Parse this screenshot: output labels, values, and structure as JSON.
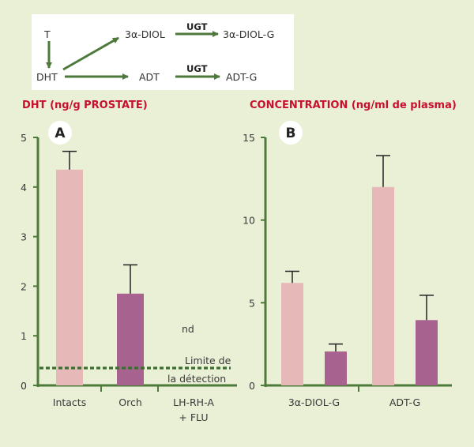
{
  "colors": {
    "background": "#e9f0d6",
    "axis": "#4d7a3a",
    "title": "#c8102e",
    "bar_light": "#e6b8b8",
    "bar_dark": "#a8628f",
    "arrow": "#4d7a3a"
  },
  "scheme": {
    "T": "T",
    "DHT": "DHT",
    "diol": "3α-DIOL",
    "diol_g": "3α-DIOL-G",
    "adt": "ADT",
    "adt_g": "ADT-G",
    "ugt_top": "UGT",
    "ugt_bottom": "UGT"
  },
  "chart_data": [
    {
      "type": "bar",
      "badge": "A",
      "title": "DHT (ng/g PROSTATE)",
      "categories": [
        "Intacts",
        "Orch",
        "LH-RH-A"
      ],
      "category_sub": [
        "",
        "",
        "+ FLU"
      ],
      "values": [
        4.35,
        1.85,
        null
      ],
      "errors": [
        0.37,
        0.58,
        null
      ],
      "bar_colors": [
        "#e6b8b8",
        "#a8628f",
        null
      ],
      "yticks": [
        "0",
        "1",
        "2",
        "3",
        "4",
        "5"
      ],
      "ylim": [
        0,
        5
      ],
      "not_detected": "nd",
      "detection_limit": 0.35,
      "detection_label_1": "Limite de",
      "detection_label_2": "la détection"
    },
    {
      "type": "bar",
      "badge": "B",
      "title": "CONCENTRATION (ng/ml de plasma)",
      "categories": [
        "3α-DIOL-G",
        "ADT-G"
      ],
      "series": [
        {
          "values": [
            6.2,
            12.0
          ],
          "errors": [
            0.7,
            1.9
          ],
          "color": "#e6b8b8"
        },
        {
          "values": [
            2.05,
            3.95
          ],
          "errors": [
            0.45,
            1.5
          ],
          "color": "#a8628f"
        }
      ],
      "yticks": [
        "0",
        "5",
        "10",
        "15"
      ],
      "ylim": [
        0,
        15
      ]
    }
  ]
}
